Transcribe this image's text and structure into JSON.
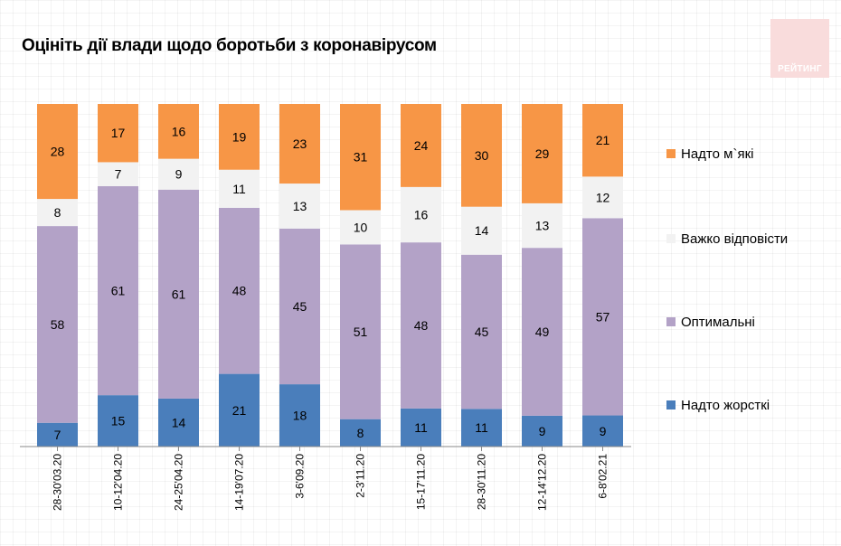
{
  "title": "Оцініть дії влади щодо боротьби з коронавірусом",
  "logo": {
    "text": "РЕЙТИНГ",
    "color": "#f9dcdc"
  },
  "chart_data": {
    "type": "bar",
    "stacked": true,
    "normalized": true,
    "title": "Оцініть дії влади щодо боротьби з коронавірусом",
    "xlabel": "",
    "ylabel": "",
    "ylim": [
      0,
      100
    ],
    "grid": false,
    "legend_position": "right",
    "categories": [
      "28-30'03.20",
      "10-12'04.20",
      "24-25'04.20",
      "14-19'07.20",
      "3-6'09.20",
      "2-3'11.20",
      "15-17'11.20",
      "28-30'11.20",
      "12-14'12.20",
      "6-8'02.21"
    ],
    "series": [
      {
        "name": "Надто жорсткі",
        "color": "#4a7ebb",
        "values": [
          7,
          15,
          14,
          21,
          18,
          8,
          11,
          11,
          9,
          9
        ]
      },
      {
        "name": "Оптимальні",
        "color": "#b3a2c7",
        "values": [
          58,
          61,
          61,
          48,
          45,
          51,
          48,
          45,
          49,
          57
        ]
      },
      {
        "name": "Важко відповісти",
        "color": "#f2f2f2",
        "values": [
          8,
          7,
          9,
          11,
          13,
          10,
          16,
          14,
          13,
          12
        ]
      },
      {
        "name": "Надто м`які",
        "color": "#f79646",
        "values": [
          28,
          17,
          16,
          19,
          23,
          31,
          24,
          30,
          29,
          21
        ]
      }
    ]
  }
}
